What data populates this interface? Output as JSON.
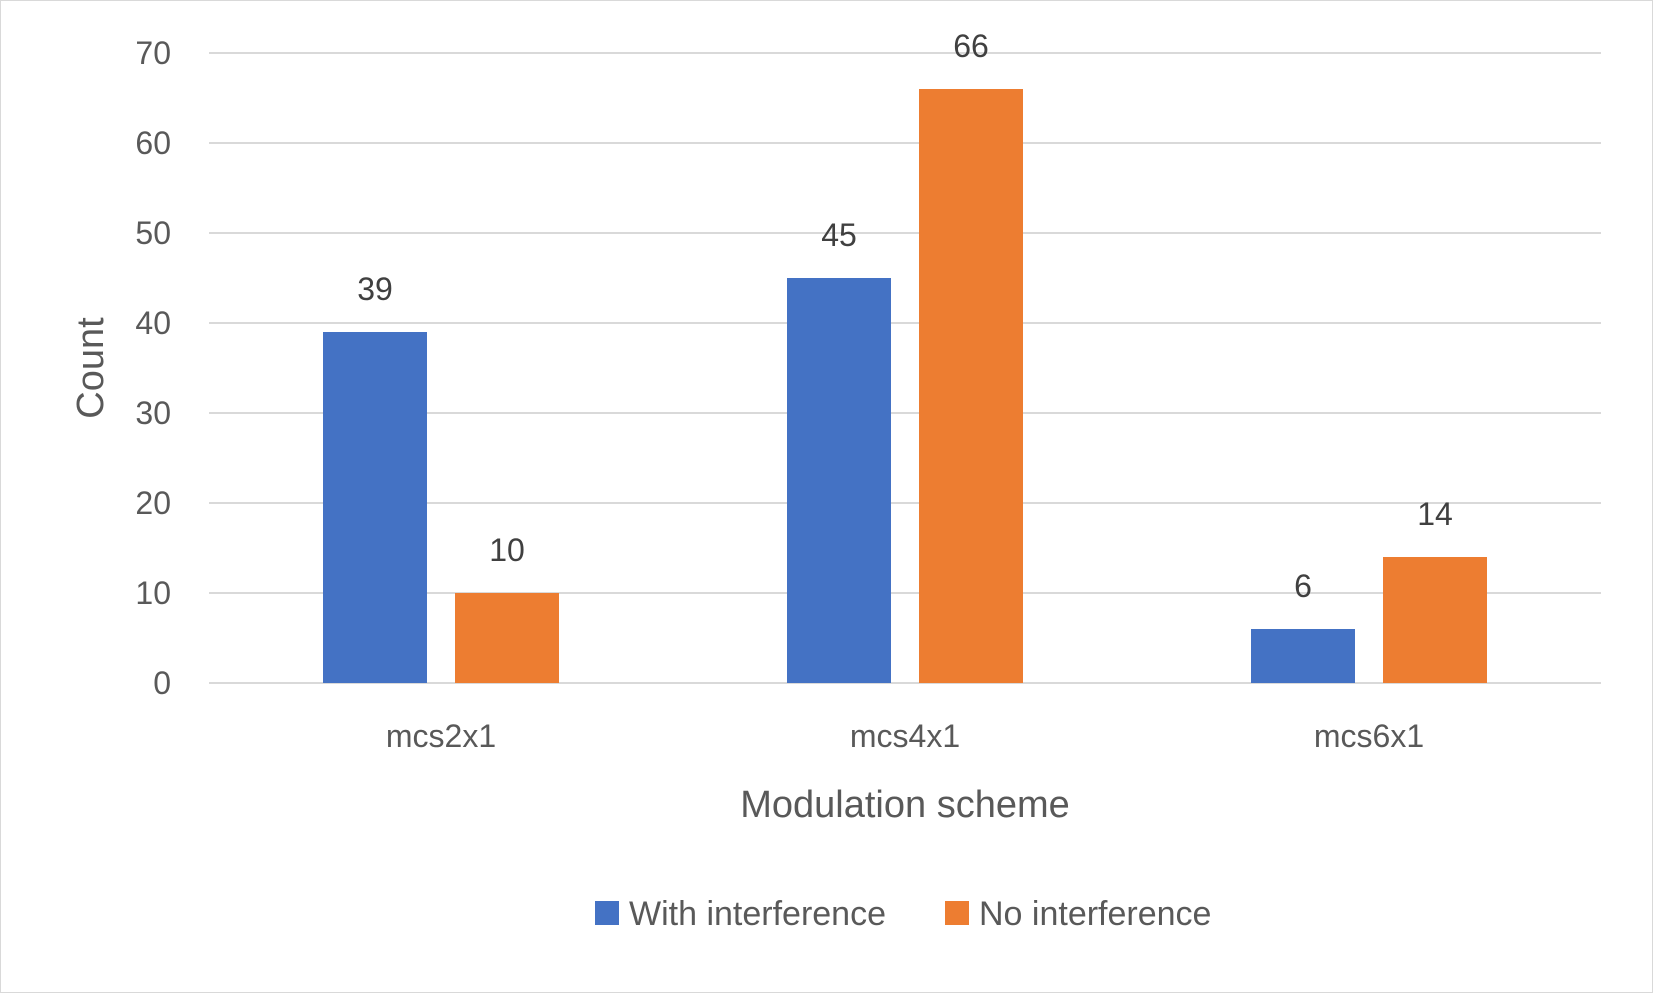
{
  "chart_data": {
    "type": "bar",
    "title": "",
    "xlabel": "Modulation scheme",
    "ylabel": "Count",
    "categories": [
      "mcs2x1",
      "mcs4x1",
      "mcs6x1"
    ],
    "series": [
      {
        "name": "With interference",
        "color": "#4472C4",
        "values": [
          39,
          45,
          6
        ]
      },
      {
        "name": "No interference",
        "color": "#ED7D31",
        "values": [
          10,
          66,
          14
        ]
      }
    ],
    "ylim": [
      0,
      70
    ],
    "yticks": [
      0,
      10,
      20,
      30,
      40,
      50,
      60,
      70
    ],
    "data_labels": true,
    "grid": true,
    "legend": "bottom"
  }
}
